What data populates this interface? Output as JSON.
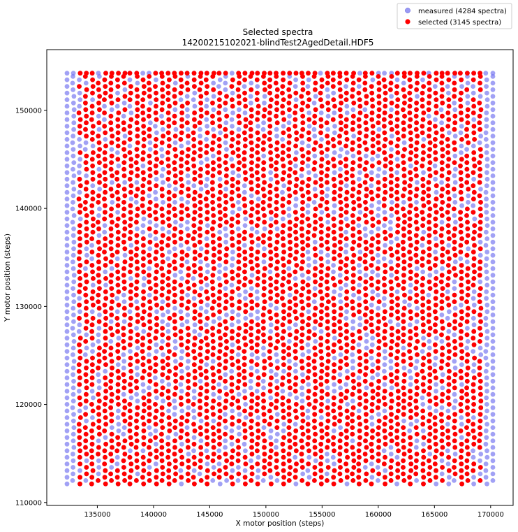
{
  "chart_data": {
    "type": "scatter",
    "title": "Selected spectra",
    "subtitle": "14200215102021-blindTest2AgedDetail.HDF5",
    "xlabel": "X motor position (steps)",
    "ylabel": "Y motor position (steps)",
    "xlim": [
      130500,
      172000
    ],
    "ylim": [
      109700,
      156200
    ],
    "x_ticks": [
      135000,
      140000,
      145000,
      150000,
      155000,
      160000,
      165000,
      170000
    ],
    "x_tick_labels": [
      "135000",
      "140000",
      "145000",
      "150000",
      "155000",
      "160000",
      "165000",
      "170000"
    ],
    "y_ticks": [
      110000,
      120000,
      130000,
      140000,
      150000
    ],
    "y_tick_labels": [
      "110000",
      "120000",
      "130000",
      "140000",
      "150000"
    ],
    "grid": false,
    "legend_position": "above-top-right",
    "series": [
      {
        "name": "measured (4284 spectra)",
        "color": "#6f6ff0",
        "marker": "circle",
        "count": 4284,
        "x_range": [
          132300,
          170200
        ],
        "y_range": [
          111900,
          153800
        ]
      },
      {
        "name": "selected (3145 spectra)",
        "color": "#ff0000",
        "marker": "circle",
        "count": 3145,
        "x_range": [
          132800,
          169800
        ],
        "y_range": [
          111900,
          153800
        ]
      }
    ]
  }
}
